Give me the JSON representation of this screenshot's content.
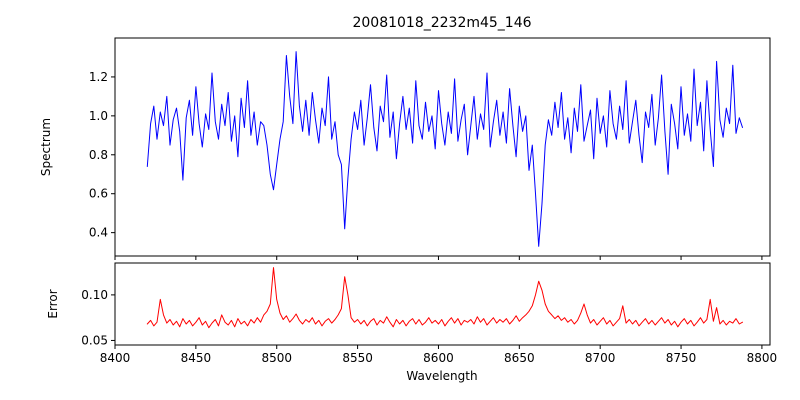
{
  "figure": {
    "background": "#ffffff",
    "text_color": "#000000"
  },
  "chart_data": {
    "type": "line",
    "title": "20081018_2232m45_146",
    "xlabel": "Wavelength",
    "x_start": 8420,
    "x_step": 2,
    "xlim": [
      8400,
      8805
    ],
    "xticks": [
      8400,
      8450,
      8500,
      8550,
      8600,
      8650,
      8700,
      8750,
      8800
    ],
    "xtick_labels": [
      "8400",
      "8450",
      "8500",
      "8550",
      "8600",
      "8650",
      "8700",
      "8750",
      "8800"
    ],
    "legend": "none",
    "grid": false,
    "panels": [
      {
        "name": "spectrum",
        "ylabel": "Spectrum",
        "ylim": [
          0.28,
          1.4
        ],
        "yticks": [
          0.4,
          0.6,
          0.8,
          1.0,
          1.2
        ],
        "ytick_labels": [
          "0.4",
          "0.6",
          "0.8",
          "1.0",
          "1.2"
        ],
        "color": "#0000ff",
        "absorption_features_x": [
          8498,
          8542,
          8662
        ],
        "values": [
          0.74,
          0.96,
          1.05,
          0.88,
          1.02,
          0.95,
          1.1,
          0.85,
          0.98,
          1.04,
          0.92,
          0.67,
          0.99,
          1.08,
          0.9,
          1.15,
          0.96,
          0.84,
          1.01,
          0.93,
          1.22,
          0.97,
          0.88,
          1.06,
          0.95,
          1.12,
          0.87,
          1.0,
          0.79,
          1.09,
          0.94,
          1.18,
          0.9,
          1.02,
          0.85,
          0.97,
          0.95,
          0.85,
          0.7,
          0.62,
          0.75,
          0.88,
          0.97,
          1.31,
          1.1,
          0.96,
          1.33,
          1.05,
          0.92,
          1.08,
          0.9,
          1.12,
          0.98,
          0.86,
          1.04,
          0.95,
          1.2,
          0.88,
          0.97,
          0.8,
          0.75,
          0.42,
          0.68,
          0.88,
          1.02,
          0.93,
          1.08,
          0.85,
          0.99,
          1.16,
          0.94,
          0.82,
          1.05,
          0.97,
          1.21,
          0.89,
          1.02,
          0.78,
          0.96,
          1.1,
          0.93,
          1.04,
          0.86,
          1.18,
          0.95,
          0.88,
          1.07,
          0.92,
          1.0,
          0.83,
          1.13,
          0.96,
          0.85,
          1.02,
          0.91,
          1.19,
          0.87,
          0.98,
          1.06,
          0.8,
          0.95,
          1.1,
          0.88,
          1.01,
          0.93,
          1.22,
          0.84,
          0.97,
          1.08,
          0.9,
          1.02,
          0.86,
          1.14,
          0.95,
          0.79,
          1.05,
          0.92,
          1.0,
          0.72,
          0.85,
          0.6,
          0.33,
          0.55,
          0.85,
          0.98,
          0.9,
          1.07,
          0.94,
          1.12,
          0.88,
          0.99,
          0.81,
          1.04,
          0.92,
          1.16,
          0.87,
          0.95,
          1.03,
          0.78,
          1.09,
          0.91,
          1.0,
          0.84,
          1.13,
          0.96,
          0.88,
          1.05,
          0.93,
          1.18,
          0.86,
          0.97,
          1.08,
          0.9,
          0.76,
          1.02,
          0.94,
          1.11,
          0.85,
          0.99,
          1.21,
          0.92,
          0.7,
          1.06,
          0.96,
          0.83,
          1.15,
          0.9,
          1.01,
          0.87,
          1.24,
          0.95,
          1.07,
          0.82,
          1.18,
          0.93,
          0.74,
          1.28,
          0.98,
          0.89,
          1.04,
          0.96,
          1.26,
          0.91,
          0.99,
          0.94
        ]
      },
      {
        "name": "error",
        "ylabel": "Error",
        "ylim": [
          0.045,
          0.135
        ],
        "yticks": [
          0.05,
          0.1
        ],
        "ytick_labels": [
          "0.05",
          "0.10"
        ],
        "color": "#ff0000",
        "values": [
          0.068,
          0.072,
          0.066,
          0.07,
          0.095,
          0.078,
          0.069,
          0.073,
          0.067,
          0.071,
          0.065,
          0.074,
          0.068,
          0.072,
          0.066,
          0.07,
          0.075,
          0.067,
          0.071,
          0.064,
          0.069,
          0.073,
          0.066,
          0.078,
          0.07,
          0.067,
          0.072,
          0.065,
          0.074,
          0.068,
          0.071,
          0.066,
          0.073,
          0.069,
          0.075,
          0.07,
          0.078,
          0.082,
          0.09,
          0.13,
          0.095,
          0.08,
          0.073,
          0.077,
          0.07,
          0.074,
          0.079,
          0.072,
          0.068,
          0.073,
          0.07,
          0.075,
          0.068,
          0.072,
          0.066,
          0.071,
          0.074,
          0.069,
          0.073,
          0.078,
          0.085,
          0.12,
          0.1,
          0.075,
          0.07,
          0.073,
          0.068,
          0.072,
          0.066,
          0.071,
          0.074,
          0.067,
          0.072,
          0.069,
          0.076,
          0.07,
          0.065,
          0.073,
          0.068,
          0.072,
          0.066,
          0.071,
          0.074,
          0.068,
          0.073,
          0.067,
          0.07,
          0.075,
          0.069,
          0.072,
          0.068,
          0.073,
          0.066,
          0.071,
          0.075,
          0.069,
          0.074,
          0.067,
          0.072,
          0.07,
          0.073,
          0.068,
          0.076,
          0.07,
          0.074,
          0.067,
          0.071,
          0.075,
          0.069,
          0.073,
          0.07,
          0.074,
          0.068,
          0.072,
          0.077,
          0.071,
          0.075,
          0.078,
          0.082,
          0.088,
          0.1,
          0.115,
          0.105,
          0.09,
          0.082,
          0.078,
          0.074,
          0.077,
          0.072,
          0.075,
          0.07,
          0.073,
          0.068,
          0.072,
          0.08,
          0.09,
          0.078,
          0.069,
          0.073,
          0.067,
          0.071,
          0.075,
          0.068,
          0.072,
          0.066,
          0.07,
          0.074,
          0.088,
          0.069,
          0.073,
          0.068,
          0.072,
          0.066,
          0.07,
          0.074,
          0.068,
          0.072,
          0.067,
          0.071,
          0.075,
          0.069,
          0.073,
          0.067,
          0.071,
          0.065,
          0.07,
          0.074,
          0.068,
          0.072,
          0.066,
          0.07,
          0.075,
          0.069,
          0.073,
          0.095,
          0.071,
          0.086,
          0.068,
          0.072,
          0.067,
          0.071,
          0.069,
          0.074,
          0.068,
          0.07
        ]
      }
    ]
  }
}
